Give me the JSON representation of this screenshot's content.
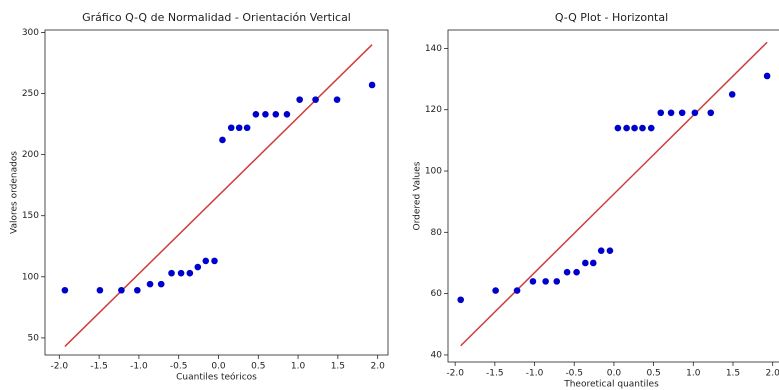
{
  "chart_data": [
    {
      "type": "scatter",
      "title": "Gráfico Q-Q de Normalidad - Orientación Vertical",
      "xlabel": "Cuantiles teóricos",
      "ylabel": "Valores ordenados",
      "x": [
        -1.93,
        -1.49,
        -1.22,
        -1.02,
        -0.86,
        -0.72,
        -0.59,
        -0.47,
        -0.36,
        -0.26,
        -0.16,
        -0.05,
        0.05,
        0.16,
        0.26,
        0.36,
        0.47,
        0.59,
        0.72,
        0.86,
        1.02,
        1.22,
        1.49,
        1.93
      ],
      "values": [
        89,
        89,
        89,
        89,
        94,
        94,
        103,
        103,
        103,
        108,
        113,
        113,
        212,
        222,
        222,
        222,
        233,
        233,
        233,
        233,
        245,
        245,
        245,
        257
      ],
      "color": "#0000cc",
      "fit_line": {
        "x": [
          -1.93,
          1.93
        ],
        "y": [
          43,
          290
        ],
        "color": "#d03c3c"
      },
      "xlim": [
        -2.18,
        2.13
      ],
      "ylim": [
        36,
        302
      ],
      "xticks": [
        {
          "value": -2,
          "label": "-2.0"
        },
        -1.5,
        {
          "value": -1,
          "label": "-1.0"
        },
        -0.5,
        {
          "value": 0,
          "label": "0.0"
        },
        0.5,
        {
          "value": 1,
          "label": "1.0"
        },
        1.5,
        {
          "value": 2,
          "label": "2.0"
        }
      ],
      "yticks": [
        50,
        100,
        150,
        200,
        250,
        300
      ],
      "grid": false
    },
    {
      "type": "scatter",
      "title": "Q-Q Plot - Horizontal",
      "xlabel": "Theoretical quantiles",
      "ylabel": "Ordered Values",
      "x": [
        -1.93,
        -1.49,
        -1.22,
        -1.02,
        -0.86,
        -0.72,
        -0.59,
        -0.47,
        -0.36,
        -0.26,
        -0.16,
        -0.05,
        0.05,
        0.16,
        0.26,
        0.36,
        0.47,
        0.59,
        0.72,
        0.86,
        1.02,
        1.22,
        1.49,
        1.93
      ],
      "values": [
        58,
        61,
        61,
        64,
        64,
        64,
        67,
        67,
        70,
        70,
        74,
        74,
        114,
        114,
        114,
        114,
        114,
        119,
        119,
        119,
        119,
        119,
        125,
        131
      ],
      "color": "#0000cc",
      "fit_line": {
        "x": [
          -1.93,
          1.93
        ],
        "y": [
          43,
          142
        ],
        "color": "#d03c3c"
      },
      "xlim": [
        -2.09,
        2.13
      ],
      "ylim": [
        37.7,
        146
      ],
      "xticks": [
        {
          "value": -2,
          "label": "-2.0"
        },
        -1.5,
        {
          "value": -1,
          "label": "-1.0"
        },
        -0.5,
        {
          "value": 0,
          "label": "0.0"
        },
        0.5,
        {
          "value": 1,
          "label": "1.0"
        },
        1.5,
        {
          "value": 2,
          "label": "2.0"
        }
      ],
      "yticks": [
        40,
        60,
        80,
        100,
        120,
        140
      ],
      "grid": false
    }
  ]
}
